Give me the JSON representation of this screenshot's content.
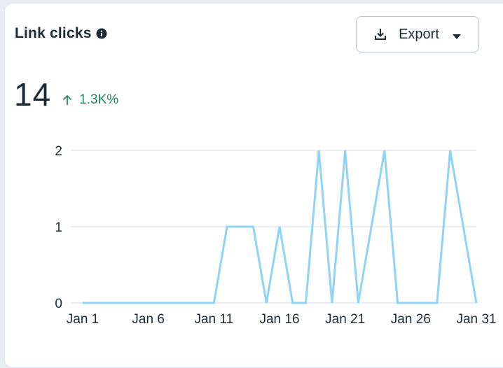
{
  "card": {
    "title": "Link clicks",
    "info_icon": "info-icon",
    "export_label": "Export",
    "export_icon": "download-icon",
    "export_caret_icon": "caret-down-icon"
  },
  "metric": {
    "value": "14",
    "change": "1.3K%",
    "change_direction": "up",
    "change_color": "#1f8a5b"
  },
  "chart_data": {
    "type": "line",
    "title": "",
    "xlabel": "",
    "ylabel": "",
    "x": [
      "Jan 1",
      "Jan 2",
      "Jan 3",
      "Jan 4",
      "Jan 5",
      "Jan 6",
      "Jan 7",
      "Jan 8",
      "Jan 9",
      "Jan 10",
      "Jan 11",
      "Jan 12",
      "Jan 13",
      "Jan 14",
      "Jan 15",
      "Jan 16",
      "Jan 17",
      "Jan 18",
      "Jan 19",
      "Jan 20",
      "Jan 21",
      "Jan 22",
      "Jan 23",
      "Jan 24",
      "Jan 25",
      "Jan 26",
      "Jan 27",
      "Jan 28",
      "Jan 29",
      "Jan 30",
      "Jan 31"
    ],
    "series": [
      {
        "values": [
          0,
          0,
          0,
          0,
          0,
          0,
          0,
          0,
          0,
          0,
          0,
          1,
          1,
          1,
          0,
          1,
          0,
          0,
          2,
          0,
          2,
          0,
          1,
          2,
          0,
          0,
          0,
          0,
          2,
          1,
          0
        ],
        "color": "#8fd3f6"
      }
    ],
    "xticks": [
      "Jan 1",
      "Jan 6",
      "Jan 11",
      "Jan 16",
      "Jan 21",
      "Jan 26",
      "Jan 31"
    ],
    "yticks": [
      "0",
      "1",
      "2"
    ],
    "ylim": [
      0,
      2
    ],
    "grid": true,
    "legend": "none"
  }
}
